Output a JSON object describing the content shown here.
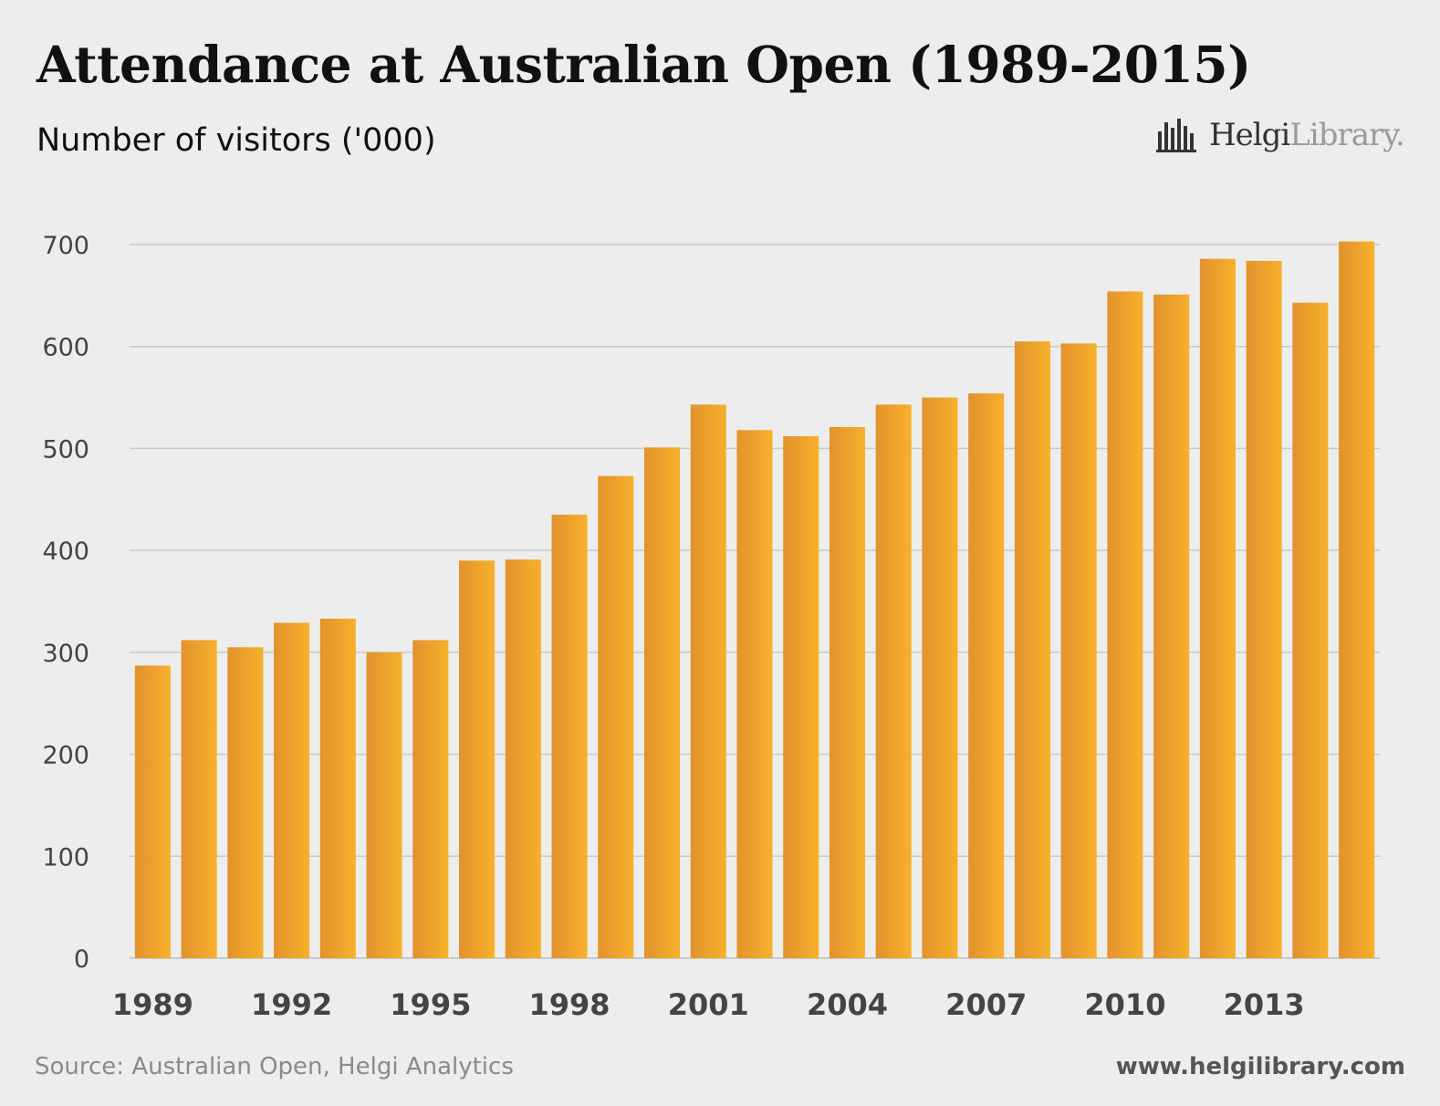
{
  "header": {
    "title": "Attendance at Australian Open (1989-2015)",
    "subtitle": "Number of visitors ('000)"
  },
  "logo": {
    "name": "Helgi",
    "suffix": "Library.",
    "icon": "bar-chart-icon"
  },
  "footer": {
    "source": "Source: Australian Open, Helgi Analytics",
    "url": "www.helgilibrary.com"
  },
  "colors": {
    "bar_dark": "#e2922c",
    "bar_light": "#f6b12c",
    "grid": "#c9c9c9",
    "background": "#ededed"
  },
  "chart_data": {
    "type": "bar",
    "title": "Attendance at Australian Open (1989-2015)",
    "subtitle": "Number of visitors ('000)",
    "ylim": [
      0,
      700
    ],
    "yticks": [
      0,
      100,
      200,
      300,
      400,
      500,
      600,
      700
    ],
    "xtick_labels": [
      "1989",
      "1992",
      "1995",
      "1998",
      "2001",
      "2004",
      "2007",
      "2010",
      "2013"
    ],
    "categories": [
      "1989",
      "1990",
      "1991",
      "1992",
      "1993",
      "1994",
      "1995",
      "1996",
      "1997",
      "1998",
      "1999",
      "2000",
      "2001",
      "2002",
      "2003",
      "2004",
      "2005",
      "2006",
      "2007",
      "2008",
      "2009",
      "2010",
      "2011",
      "2012",
      "2013",
      "2014",
      "2015"
    ],
    "values": [
      287,
      312,
      305,
      329,
      333,
      300,
      312,
      390,
      391,
      435,
      473,
      501,
      543,
      518,
      512,
      521,
      543,
      550,
      554,
      605,
      603,
      654,
      651,
      686,
      684,
      643,
      703
    ],
    "grid": true
  }
}
